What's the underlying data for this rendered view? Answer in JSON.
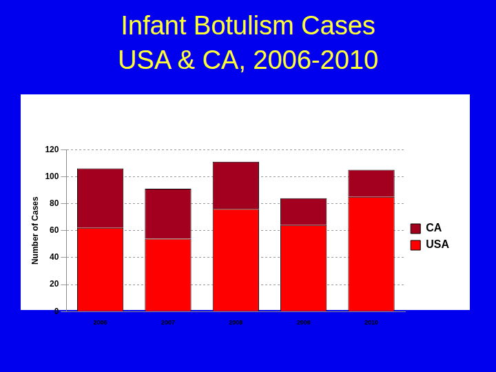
{
  "chart_data": {
    "type": "bar",
    "title": "Infant Botulism Cases\nUSA & CA, 2006-2010",
    "y_label": "Number of Cases",
    "categories": [
      "2006",
      "2007",
      "2008",
      "2009",
      "2010"
    ],
    "series": [
      {
        "name": "USA",
        "color": "#ff0000",
        "values": [
          62,
          54,
          76,
          64,
          85
        ]
      },
      {
        "name": "CA",
        "color": "#a3001f",
        "values": [
          44,
          37,
          35,
          20,
          20
        ]
      }
    ],
    "stacked": true,
    "ylim": [
      0,
      120
    ],
    "yticks": [
      0,
      20,
      40,
      60,
      80,
      100,
      120
    ],
    "grid": true,
    "legend": "right"
  }
}
